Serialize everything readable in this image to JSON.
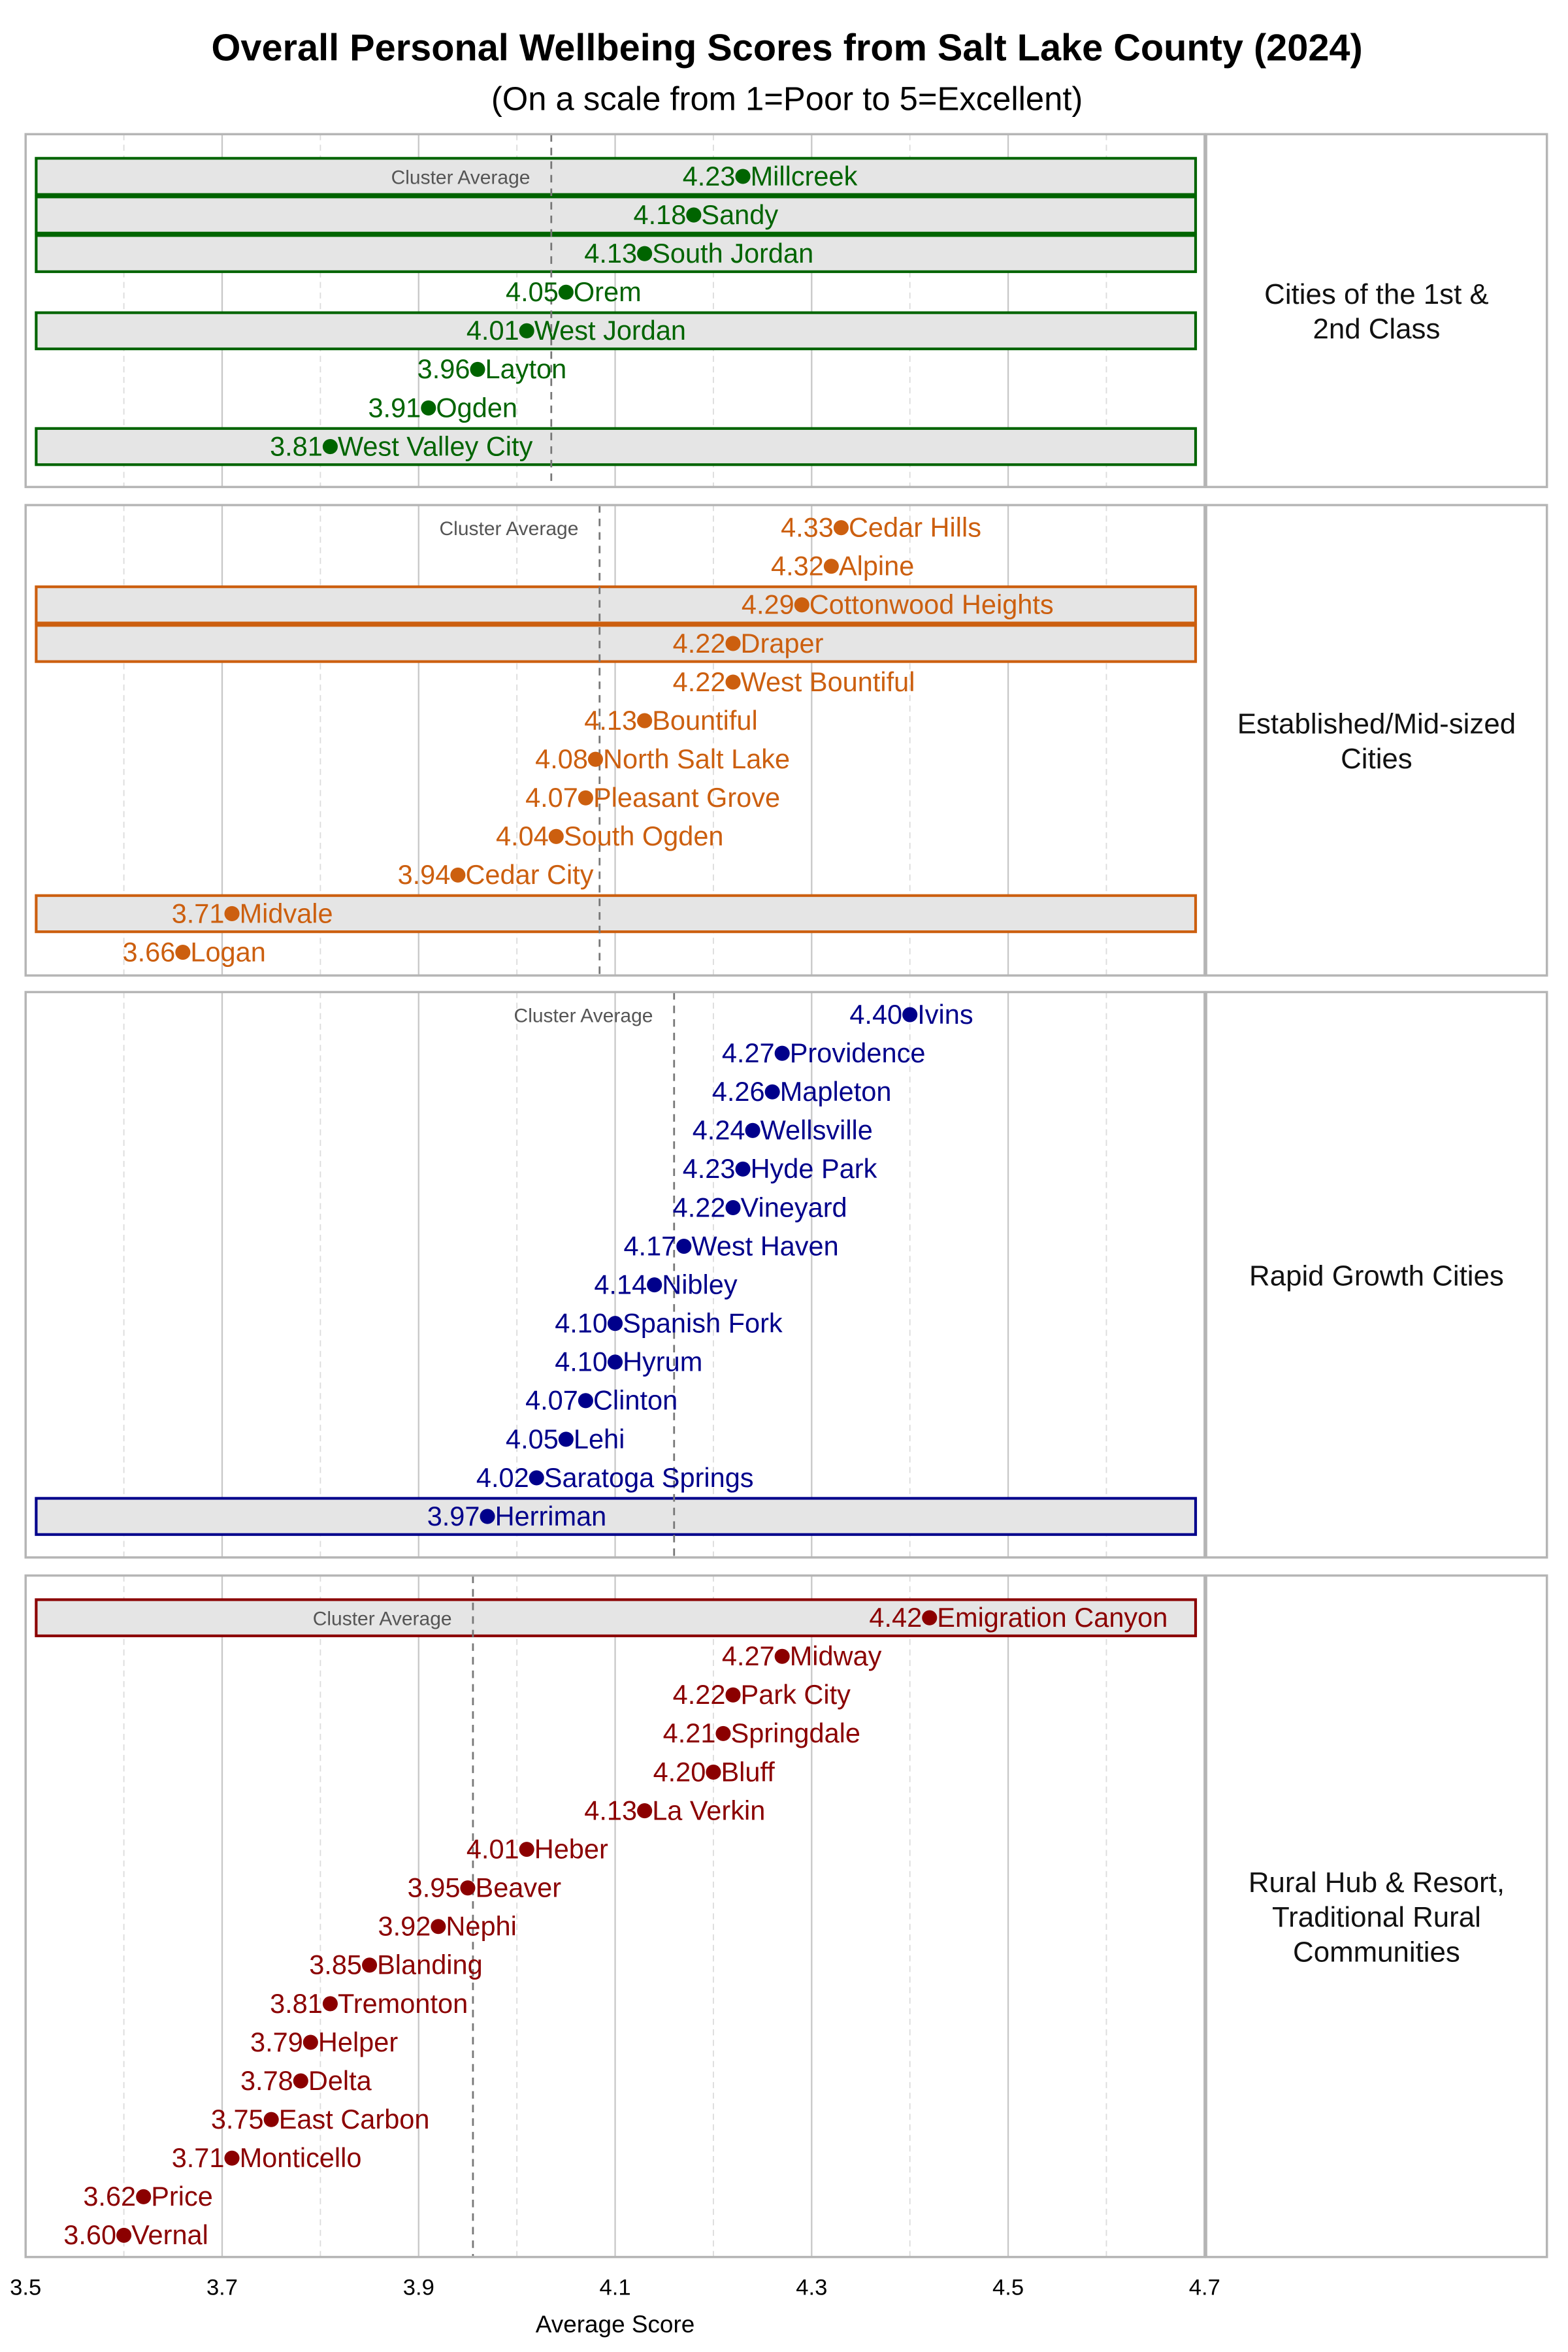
{
  "chart_data": {
    "type": "scatter",
    "title": "Overall Personal Wellbeing Scores from Salt Lake County (2024)",
    "subtitle": "(On a scale from 1=Poor to 5=Excellent)",
    "xlabel": "Average Score",
    "xlim": [
      3.5,
      4.7
    ],
    "x_ticks": [
      "3.5",
      "3.7",
      "3.9",
      "4.1",
      "4.3",
      "4.5",
      "4.7"
    ],
    "grid": true,
    "reference_line_label": "Cluster Average",
    "panels": [
      {
        "label": [
          "Cities of the 1st &",
          "2nd Class"
        ],
        "color": "#006400",
        "points": [
          {
            "name": "Millcreek",
            "value": 4.23,
            "highlighted": true
          },
          {
            "name": "Sandy",
            "value": 4.18,
            "highlighted": true
          },
          {
            "name": "South Jordan",
            "value": 4.13,
            "highlighted": true
          },
          {
            "name": "Orem",
            "value": 4.05,
            "highlighted": false
          },
          {
            "name": "West Jordan",
            "value": 4.01,
            "highlighted": true
          },
          {
            "name": "Layton",
            "value": 3.96,
            "highlighted": false
          },
          {
            "name": "Ogden",
            "value": 3.91,
            "highlighted": false
          },
          {
            "name": "West Valley City",
            "value": 3.81,
            "highlighted": true
          }
        ]
      },
      {
        "label": [
          "Established/Mid-sized",
          "Cities"
        ],
        "color": "#cc5f0f",
        "points": [
          {
            "name": "Cedar Hills",
            "value": 4.33,
            "highlighted": false
          },
          {
            "name": "Alpine",
            "value": 4.32,
            "highlighted": false
          },
          {
            "name": "Cottonwood Heights",
            "value": 4.29,
            "highlighted": true
          },
          {
            "name": "Draper",
            "value": 4.22,
            "highlighted": true
          },
          {
            "name": "West Bountiful",
            "value": 4.22,
            "highlighted": false
          },
          {
            "name": "Bountiful",
            "value": 4.13,
            "highlighted": false
          },
          {
            "name": "North Salt Lake",
            "value": 4.08,
            "highlighted": false
          },
          {
            "name": "Pleasant Grove",
            "value": 4.07,
            "highlighted": false
          },
          {
            "name": "South Ogden",
            "value": 4.04,
            "highlighted": false
          },
          {
            "name": "Cedar City",
            "value": 3.94,
            "highlighted": false
          },
          {
            "name": "Midvale",
            "value": 3.71,
            "highlighted": true
          },
          {
            "name": "Logan",
            "value": 3.66,
            "highlighted": false
          }
        ]
      },
      {
        "label": [
          "Rapid Growth Cities"
        ],
        "color": "#00008b",
        "points": [
          {
            "name": "Ivins",
            "value": 4.4,
            "highlighted": false
          },
          {
            "name": "Providence",
            "value": 4.27,
            "highlighted": false
          },
          {
            "name": "Mapleton",
            "value": 4.26,
            "highlighted": false
          },
          {
            "name": "Wellsville",
            "value": 4.24,
            "highlighted": false
          },
          {
            "name": "Hyde Park",
            "value": 4.23,
            "highlighted": false
          },
          {
            "name": "Vineyard",
            "value": 4.22,
            "highlighted": false
          },
          {
            "name": "West Haven",
            "value": 4.17,
            "highlighted": false
          },
          {
            "name": "Nibley",
            "value": 4.14,
            "highlighted": false
          },
          {
            "name": "Spanish Fork",
            "value": 4.1,
            "highlighted": false
          },
          {
            "name": "Hyrum",
            "value": 4.1,
            "highlighted": false
          },
          {
            "name": "Clinton",
            "value": 4.07,
            "highlighted": false
          },
          {
            "name": "Lehi",
            "value": 4.05,
            "highlighted": false
          },
          {
            "name": "Saratoga Springs",
            "value": 4.02,
            "highlighted": false
          },
          {
            "name": "Herriman",
            "value": 3.97,
            "highlighted": true
          }
        ]
      },
      {
        "label": [
          "Rural Hub & Resort,",
          "Traditional Rural",
          "Communities"
        ],
        "color": "#8b0000",
        "points": [
          {
            "name": "Emigration Canyon",
            "value": 4.42,
            "highlighted": true
          },
          {
            "name": "Midway",
            "value": 4.27,
            "highlighted": false
          },
          {
            "name": "Park City",
            "value": 4.22,
            "highlighted": false
          },
          {
            "name": "Springdale",
            "value": 4.21,
            "highlighted": false
          },
          {
            "name": "Bluff",
            "value": 4.2,
            "highlighted": false
          },
          {
            "name": "La Verkin",
            "value": 4.13,
            "highlighted": false
          },
          {
            "name": "Heber",
            "value": 4.01,
            "highlighted": false
          },
          {
            "name": "Beaver",
            "value": 3.95,
            "highlighted": false
          },
          {
            "name": "Nephi",
            "value": 3.92,
            "highlighted": false
          },
          {
            "name": "Blanding",
            "value": 3.85,
            "highlighted": false
          },
          {
            "name": "Tremonton",
            "value": 3.81,
            "highlighted": false
          },
          {
            "name": "Helper",
            "value": 3.79,
            "highlighted": false
          },
          {
            "name": "Delta",
            "value": 3.78,
            "highlighted": false
          },
          {
            "name": "East Carbon",
            "value": 3.75,
            "highlighted": false
          },
          {
            "name": "Monticello",
            "value": 3.71,
            "highlighted": false
          },
          {
            "name": "Price",
            "value": 3.62,
            "highlighted": false
          },
          {
            "name": "Vernal",
            "value": 3.6,
            "highlighted": false
          }
        ]
      }
    ]
  }
}
